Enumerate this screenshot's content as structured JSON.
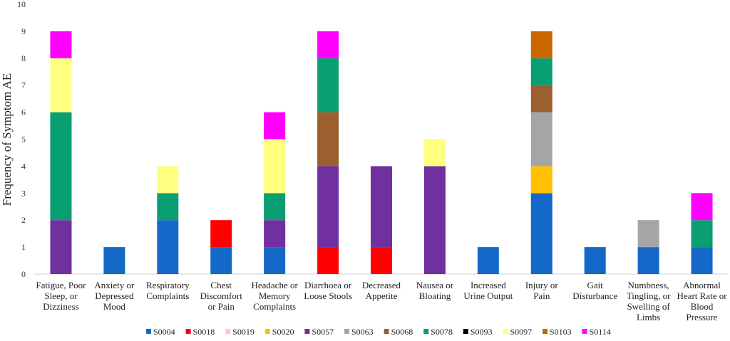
{
  "chart_data": {
    "type": "bar",
    "stacked": true,
    "ylabel": "Frequency of Symptom AE",
    "xlabel": "",
    "title": "",
    "ylim": [
      0,
      10
    ],
    "yticks": [
      "0",
      "1",
      "2",
      "3",
      "4",
      "5",
      "6",
      "7",
      "8",
      "9",
      "10"
    ],
    "grid": false,
    "legend_position": "bottom",
    "categories": [
      [
        "Fatigue, Poor",
        "Sleep, or",
        "Dizziness"
      ],
      [
        "Anxiety or",
        "Depressed",
        "Mood"
      ],
      [
        "Respiratory",
        "Complaints"
      ],
      [
        "Chest",
        "Discomfort",
        "or Pain"
      ],
      [
        "Headache or",
        "Memory",
        "Complaints"
      ],
      [
        "Diarrhoea or",
        "Loose Stools"
      ],
      [
        "Decreased",
        "Appetite"
      ],
      [
        "Nausea or",
        "Bloating"
      ],
      [
        "Increased",
        "Urine Output"
      ],
      [
        "Injury or",
        "Pain"
      ],
      [
        "Gait",
        "Disturbance"
      ],
      [
        "Numbness,",
        "Tingling, or",
        "Swelling of",
        "Limbs"
      ],
      [
        "Abnormal",
        "Heart Rate or",
        "Blood",
        "Pressure"
      ]
    ],
    "series": [
      {
        "name": "S0004",
        "color": "#1469C8",
        "values": [
          0,
          1,
          2,
          1,
          1,
          0,
          0,
          0,
          1,
          3,
          1,
          1,
          1
        ]
      },
      {
        "name": "S0018",
        "color": "#FF0000",
        "values": [
          0,
          0,
          0,
          1,
          0,
          1,
          1,
          0,
          0,
          0,
          0,
          0,
          0
        ]
      },
      {
        "name": "S0019",
        "color": "#FFC0F0",
        "values": [
          0,
          0,
          0,
          0,
          0,
          0,
          0,
          0,
          0,
          0,
          0,
          0,
          0
        ]
      },
      {
        "name": "S0020",
        "color": "#FFC000",
        "values": [
          0,
          0,
          0,
          0,
          0,
          0,
          0,
          0,
          0,
          1,
          0,
          0,
          0
        ]
      },
      {
        "name": "S0057",
        "color": "#7030A0",
        "values": [
          2,
          0,
          0,
          0,
          1,
          3,
          3,
          4,
          0,
          0,
          0,
          0,
          0
        ]
      },
      {
        "name": "S0063",
        "color": "#A5A5A5",
        "values": [
          0,
          0,
          0,
          0,
          0,
          0,
          0,
          0,
          0,
          2,
          0,
          1,
          0
        ]
      },
      {
        "name": "S0068",
        "color": "#9C5F2E",
        "values": [
          0,
          0,
          0,
          0,
          0,
          2,
          0,
          0,
          0,
          1,
          0,
          0,
          0
        ]
      },
      {
        "name": "S0078",
        "color": "#0A9E73",
        "values": [
          4,
          0,
          1,
          0,
          1,
          2,
          0,
          0,
          0,
          1,
          0,
          0,
          1
        ]
      },
      {
        "name": "S0093",
        "color": "#000000",
        "values": [
          0,
          0,
          0,
          0,
          0,
          0,
          0,
          0,
          0,
          0,
          0,
          0,
          0
        ]
      },
      {
        "name": "S0097",
        "color": "#FFFF80",
        "values": [
          2,
          0,
          1,
          0,
          2,
          0,
          0,
          1,
          0,
          0,
          0,
          0,
          0
        ]
      },
      {
        "name": "S0103",
        "color": "#CC6600",
        "values": [
          0,
          0,
          0,
          0,
          0,
          0,
          0,
          0,
          0,
          1,
          0,
          0,
          0
        ]
      },
      {
        "name": "S0114",
        "color": "#FF00FF",
        "values": [
          1,
          0,
          0,
          0,
          1,
          1,
          0,
          0,
          0,
          0,
          0,
          0,
          1
        ]
      }
    ]
  }
}
